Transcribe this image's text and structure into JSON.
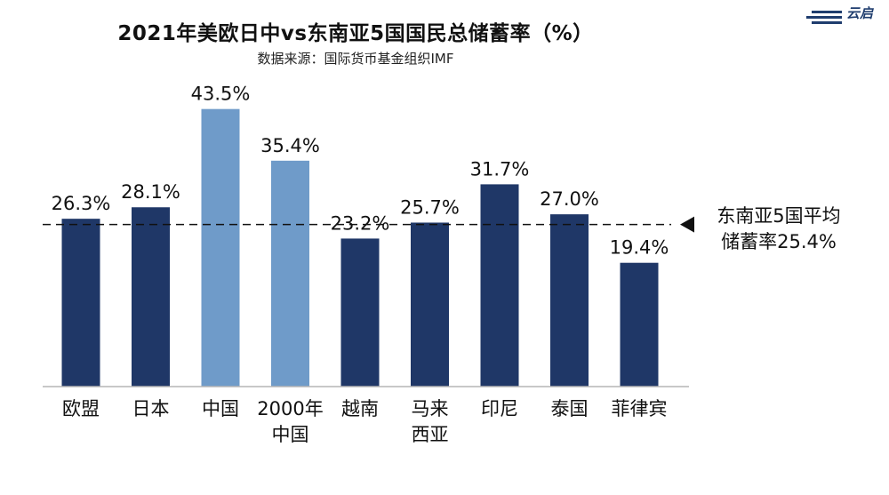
{
  "title": "2021年美欧日中vs东南亚5国国民总储蓄率（%）",
  "subtitle": "数据来源：国际货币基金组织IMF",
  "logo": {
    "text": "云启",
    "icon": "cloud-logo-icon"
  },
  "colors": {
    "dark": "#1f3767",
    "light": "#6f9bc9",
    "axis": "#b5b5b5"
  },
  "chart_data": {
    "type": "bar",
    "title": "2021年美欧日中vs东南亚5国国民总储蓄率（%）",
    "unit": "%",
    "ylim": [
      0,
      50
    ],
    "categories": [
      [
        "欧盟"
      ],
      [
        "日本"
      ],
      [
        "中国"
      ],
      [
        "2000年",
        "中国"
      ],
      [
        "越南"
      ],
      [
        "马来",
        "西亚"
      ],
      [
        "印尼"
      ],
      [
        "泰国"
      ],
      [
        "菲律宾"
      ]
    ],
    "values": [
      26.3,
      28.1,
      43.5,
      35.4,
      23.2,
      25.7,
      31.7,
      27.0,
      19.4
    ],
    "value_labels": [
      "26.3%",
      "28.1%",
      "43.5%",
      "35.4%",
      "23.2%",
      "25.7%",
      "31.7%",
      "27.0%",
      "19.4%"
    ],
    "highlight": [
      false,
      false,
      true,
      true,
      false,
      false,
      false,
      false,
      false
    ],
    "reference_line": {
      "value": 25.4,
      "label_lines": [
        "东南亚5国平均",
        "储蓄率25.4%"
      ]
    }
  }
}
